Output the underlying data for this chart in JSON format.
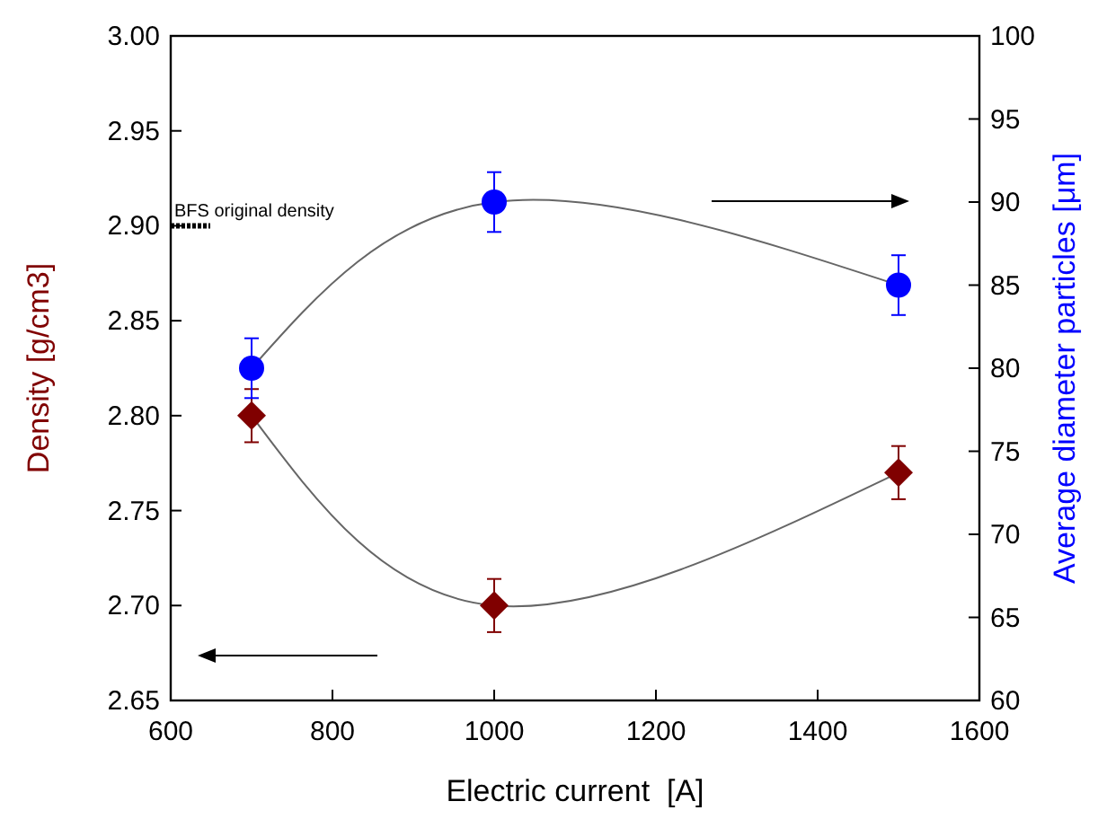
{
  "chart_data": {
    "type": "line",
    "xlabel": "Electric current  [A]",
    "ylabel": "Density [g/cm3]",
    "y2label": "Average diameter particles [μm]",
    "x": [
      700,
      1000,
      1500
    ],
    "series": [
      {
        "color": "#800000",
        "values": [
          2.8,
          2.7,
          2.77
        ],
        "errors": [
          0.014,
          0.014,
          0.014
        ],
        "marker": "diamond"
      },
      {
        "color": "#0000ff",
        "values": [
          80,
          90,
          85
        ],
        "errors": [
          1.8,
          1.8,
          1.8
        ],
        "marker": "circle",
        "axis": "y2"
      }
    ],
    "xlim": [
      600,
      1600
    ],
    "xticks": [
      600,
      800,
      1000,
      1200,
      1400,
      1600
    ],
    "ylim": [
      2.65,
      3.0
    ],
    "yticks": [
      {
        "value": 2.65,
        "label": "2.65"
      },
      {
        "value": 2.7,
        "label": "2.70"
      },
      2.75,
      {
        "value": 2.8,
        "label": "2.80"
      },
      2.85,
      {
        "value": 2.9,
        "label": "2.90"
      },
      2.95,
      {
        "value": 3.0,
        "label": "3.00"
      }
    ],
    "y2lim": [
      60,
      100
    ],
    "y2ticks": [
      60,
      65,
      70,
      75,
      80,
      85,
      90,
      95,
      100
    ],
    "ref_lines": [
      {
        "axis": "y",
        "value": 2.9,
        "label": "BFS original density",
        "line_style": "dotted"
      }
    ],
    "grid": false
  }
}
